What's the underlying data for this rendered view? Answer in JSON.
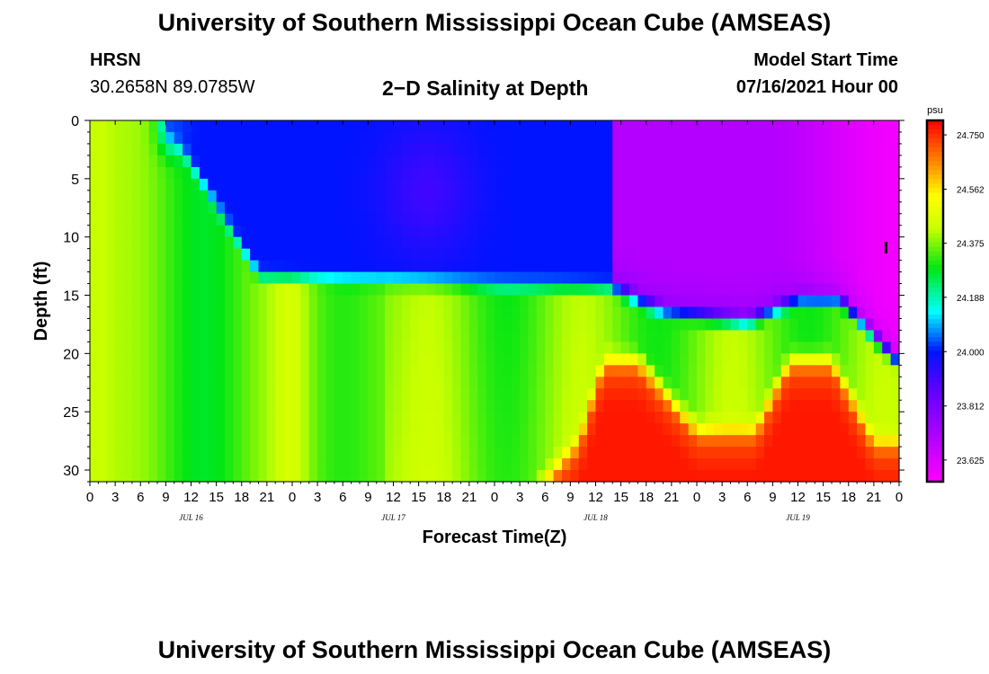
{
  "header": {
    "title": "University of Southern Mississippi Ocean Cube (AMSEAS)",
    "station": "HRSN",
    "coords": "30.2658N  89.0785W",
    "chart_title": "2−D Salinity at Depth",
    "start_label": "Model Start Time",
    "start_value": "07/16/2021 Hour 00"
  },
  "footer": {
    "title": "University of Southern Mississippi Ocean Cube (AMSEAS)"
  },
  "chart_data": {
    "type": "heatmap",
    "title": "2−D Salinity at Depth",
    "xlabel": "Forecast Time(Z)",
    "ylabel": "Depth (ft)",
    "xlim": [
      0,
      96
    ],
    "ylim": [
      31,
      0
    ],
    "x_tick_labels": [
      "0",
      "3",
      "6",
      "9",
      "12",
      "15",
      "18",
      "21",
      "0",
      "3",
      "6",
      "9",
      "12",
      "15",
      "18",
      "21",
      "0",
      "3",
      "6",
      "9",
      "12",
      "15",
      "18",
      "21",
      "0",
      "3",
      "6",
      "9",
      "12",
      "15",
      "18",
      "21",
      "0"
    ],
    "date_labels": [
      {
        "label": "JUL 16",
        "hour": 12
      },
      {
        "label": "JUL 17",
        "hour": 36
      },
      {
        "label": "JUL 18",
        "hour": 60
      },
      {
        "label": "JUL 19",
        "hour": 84
      }
    ],
    "y_ticks": [
      0,
      5,
      10,
      15,
      20,
      25,
      30
    ],
    "colorbar": {
      "unit": "psu",
      "labels": [
        "24.750",
        "24.562",
        "24.375",
        "24.188",
        "24.000",
        "23.812",
        "23.625"
      ],
      "min": 23.55,
      "max": 24.8
    },
    "grid": false
  }
}
